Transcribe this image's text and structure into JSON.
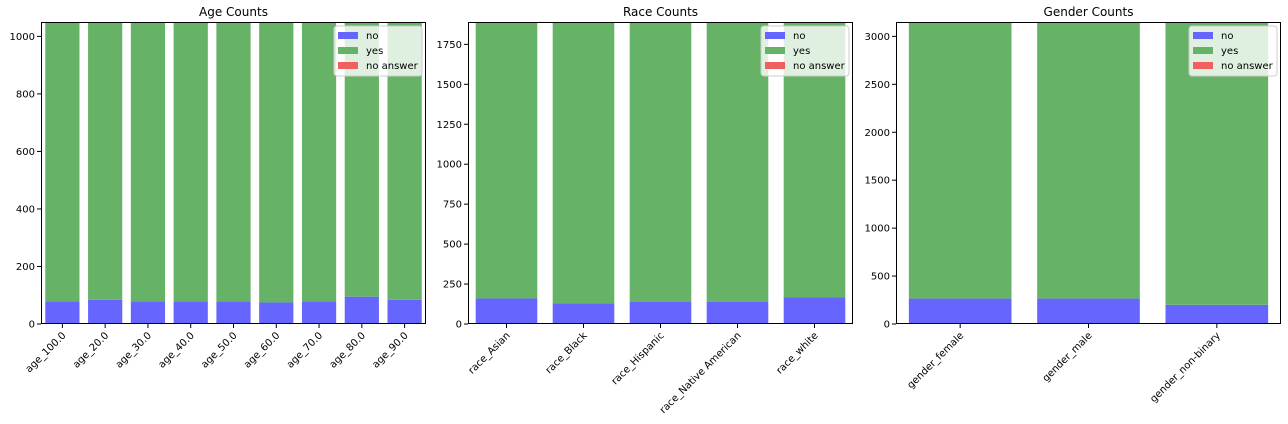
{
  "colors": {
    "no": "#6666ff",
    "yes": "#66b266",
    "no_answer": "#f06060"
  },
  "chart_data": [
    {
      "type": "bar",
      "stacked": true,
      "title": "Age Counts",
      "categories": [
        "age_100.0",
        "age_20.0",
        "age_30.0",
        "age_40.0",
        "age_50.0",
        "age_60.0",
        "age_70.0",
        "age_80.0",
        "age_90.0"
      ],
      "series": [
        {
          "name": "no",
          "values": [
            78,
            84,
            78,
            78,
            78,
            75,
            78,
            95,
            84
          ]
        },
        {
          "name": "yes",
          "values": [
            972,
            966,
            972,
            972,
            972,
            975,
            972,
            955,
            966
          ]
        },
        {
          "name": "no answer",
          "values": [
            0,
            0,
            0,
            0,
            0,
            0,
            0,
            0,
            0
          ]
        }
      ],
      "ylim": [
        0,
        1050
      ],
      "yticks": [
        0,
        200,
        400,
        600,
        800,
        1000
      ],
      "legend": "upper right"
    },
    {
      "type": "bar",
      "stacked": true,
      "title": "Race Counts",
      "categories": [
        "race_Asian",
        "race_Black",
        "race_Hispanic",
        "race_Native American",
        "race_white"
      ],
      "series": [
        {
          "name": "no",
          "values": [
            160,
            128,
            138,
            138,
            168
          ]
        },
        {
          "name": "yes",
          "values": [
            1730,
            1762,
            1752,
            1752,
            1722
          ]
        },
        {
          "name": "no answer",
          "values": [
            0,
            0,
            0,
            0,
            0
          ]
        }
      ],
      "ylim": [
        0,
        1890
      ],
      "yticks": [
        0,
        250,
        500,
        750,
        1000,
        1250,
        1500,
        1750
      ],
      "legend": "upper right"
    },
    {
      "type": "bar",
      "stacked": true,
      "title": "Gender Counts",
      "categories": [
        "gender_female",
        "gender_male",
        "gender_non-binary"
      ],
      "series": [
        {
          "name": "no",
          "values": [
            265,
            265,
            200
          ]
        },
        {
          "name": "yes",
          "values": [
            2885,
            2885,
            2950
          ]
        },
        {
          "name": "no answer",
          "values": [
            0,
            0,
            0
          ]
        }
      ],
      "ylim": [
        0,
        3150
      ],
      "yticks": [
        0,
        500,
        1000,
        1500,
        2000,
        2500,
        3000
      ],
      "legend": "upper right"
    }
  ]
}
